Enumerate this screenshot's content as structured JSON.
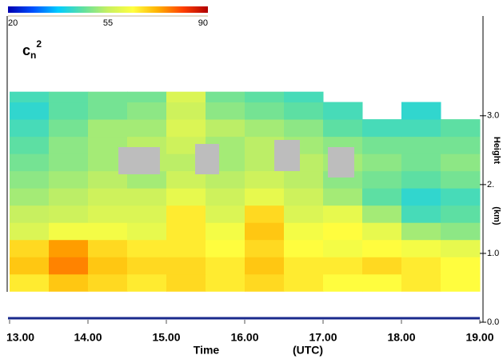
{
  "chart_data": {
    "type": "heatmap",
    "title": {
      "base": "c",
      "sub": "n",
      "sup": "2"
    },
    "x_label": "Time",
    "x_unit": "(UTC)",
    "y_label": "Height",
    "y_unit": "(km)",
    "clim": [
      20,
      90
    ],
    "cbar_ticks": [
      20,
      55,
      90
    ],
    "colormap": [
      "#0000b0",
      "#0050ff",
      "#00ccff",
      "#60e0a0",
      "#c8f060",
      "#ffff40",
      "#ffb000",
      "#ff4000",
      "#b00000"
    ],
    "xlim": [
      13,
      19
    ],
    "xticks": [
      {
        "value": 13,
        "label": "13.00"
      },
      {
        "value": 14,
        "label": "14.00"
      },
      {
        "value": 15,
        "label": "15.00"
      },
      {
        "value": 16,
        "label": "16.00"
      },
      {
        "value": 17,
        "label": "17.00"
      },
      {
        "value": 18,
        "label": "18.00"
      },
      {
        "value": 19,
        "label": "19.00"
      }
    ],
    "ylim": [
      0,
      4.45
    ],
    "yticks": [
      {
        "value": 0,
        "label": "0.0"
      },
      {
        "value": 1,
        "label": "1.0"
      },
      {
        "value": 2,
        "label": "2."
      },
      {
        "value": 3,
        "label": "3.0"
      }
    ],
    "xbins": [
      13,
      13.5,
      14,
      14.5,
      15,
      15.5,
      16,
      16.5,
      17,
      17.5,
      18,
      18.5,
      19
    ],
    "ybins": [
      0.45,
      0.7,
      0.95,
      1.2,
      1.45,
      1.7,
      1.95,
      2.2,
      2.45,
      2.7,
      2.95,
      3.2,
      3.35
    ],
    "values": [
      [
        66,
        70,
        68,
        66,
        68,
        66,
        68,
        66,
        64,
        64,
        66,
        64
      ],
      [
        70,
        76,
        70,
        68,
        68,
        66,
        70,
        66,
        66,
        68,
        66,
        64
      ],
      [
        68,
        74,
        68,
        66,
        66,
        64,
        68,
        64,
        62,
        64,
        62,
        60
      ],
      [
        58,
        62,
        62,
        60,
        66,
        62,
        70,
        62,
        64,
        60,
        52,
        50
      ],
      [
        55,
        56,
        58,
        58,
        66,
        58,
        68,
        58,
        60,
        52,
        44,
        46
      ],
      [
        52,
        54,
        56,
        56,
        60,
        56,
        60,
        56,
        52,
        46,
        42,
        44
      ],
      [
        50,
        52,
        54,
        52,
        56,
        54,
        56,
        54,
        50,
        48,
        46,
        48
      ],
      [
        48,
        50,
        52,
        54,
        54,
        52,
        54,
        54,
        52,
        50,
        48,
        50
      ],
      [
        46,
        50,
        52,
        54,
        56,
        52,
        54,
        52,
        50,
        48,
        48,
        48
      ],
      [
        44,
        48,
        52,
        52,
        58,
        54,
        52,
        50,
        46,
        44,
        44,
        46
      ],
      [
        42,
        46,
        48,
        50,
        56,
        50,
        48,
        46,
        44,
        null,
        42,
        null
      ],
      [
        44,
        46,
        48,
        48,
        58,
        48,
        46,
        44,
        null,
        null,
        null,
        null
      ]
    ]
  }
}
